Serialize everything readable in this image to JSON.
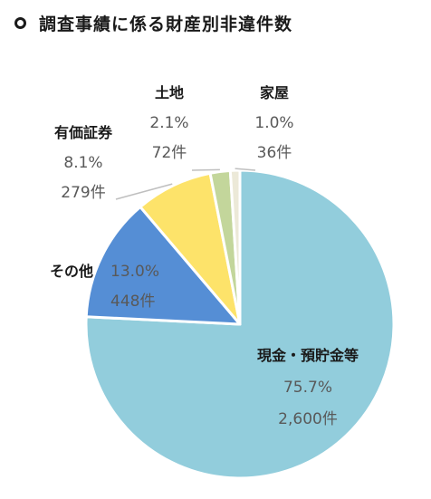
{
  "title": "調査事績に係る財産別非違件数",
  "chart_data": {
    "type": "pie",
    "title": "調査事績に係る財産別非違件数",
    "slices": [
      {
        "name": "現金・預貯金等",
        "percent_label": "75.7%",
        "count_label": "2,600件",
        "value": 75.7,
        "count": 2600,
        "color": "#92cddc"
      },
      {
        "name": "その他",
        "percent_label": "13.0%",
        "count_label": "448件",
        "value": 13.0,
        "count": 448,
        "color": "#558ed5"
      },
      {
        "name": "有価証券",
        "percent_label": "8.1%",
        "count_label": "279件",
        "value": 8.1,
        "count": 279,
        "color": "#fde36a"
      },
      {
        "name": "土地",
        "percent_label": "2.1%",
        "count_label": "72件",
        "value": 2.1,
        "count": 72,
        "color": "#c3d69b"
      },
      {
        "name": "家屋",
        "percent_label": "1.0%",
        "count_label": "36件",
        "value": 1.0,
        "count": 36,
        "color": "#ece9d8"
      }
    ]
  }
}
